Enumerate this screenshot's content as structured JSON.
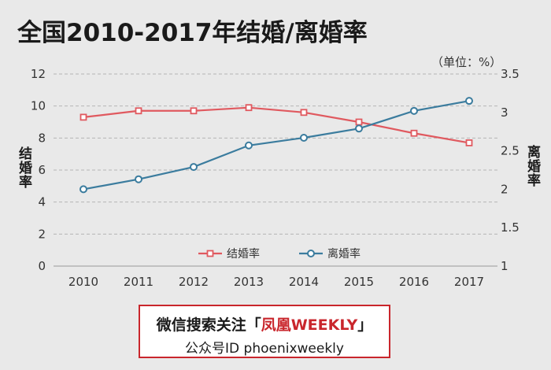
{
  "title": "全国2010-2017年结婚/离婚率",
  "unit": "（单位：%）",
  "footer": {
    "line1_prefix": "微信搜索关注「",
    "line1_brand": "凤凰WEEKLY",
    "line1_suffix": "」",
    "line2": "公众号ID  phoenixweekly"
  },
  "chart_data": {
    "type": "line",
    "title": "全国2010-2017年结婚/离婚率",
    "unit": "（单位：%）",
    "categories": [
      "2010",
      "2011",
      "2012",
      "2013",
      "2014",
      "2015",
      "2016",
      "2017"
    ],
    "y_left": {
      "label": "结婚率",
      "ylim": [
        0,
        12
      ],
      "ticks": [
        0,
        2,
        4,
        6,
        8,
        10,
        12
      ]
    },
    "y_right": {
      "label": "离婚率",
      "ylim": [
        1,
        3.5
      ],
      "ticks": [
        1,
        1.5,
        2,
        2.5,
        3,
        3.5
      ]
    },
    "grid": true,
    "legend_position": "bottom-center",
    "series": [
      {
        "name": "结婚率",
        "axis": "left",
        "color": "#e0595f",
        "marker": "square",
        "values": [
          9.3,
          9.7,
          9.7,
          9.9,
          9.6,
          9.0,
          8.3,
          7.7
        ]
      },
      {
        "name": "离婚率",
        "axis": "right",
        "color": "#3b7c9e",
        "marker": "circle",
        "values": [
          2.0,
          2.13,
          2.29,
          2.57,
          2.67,
          2.79,
          3.02,
          3.15
        ]
      }
    ]
  }
}
